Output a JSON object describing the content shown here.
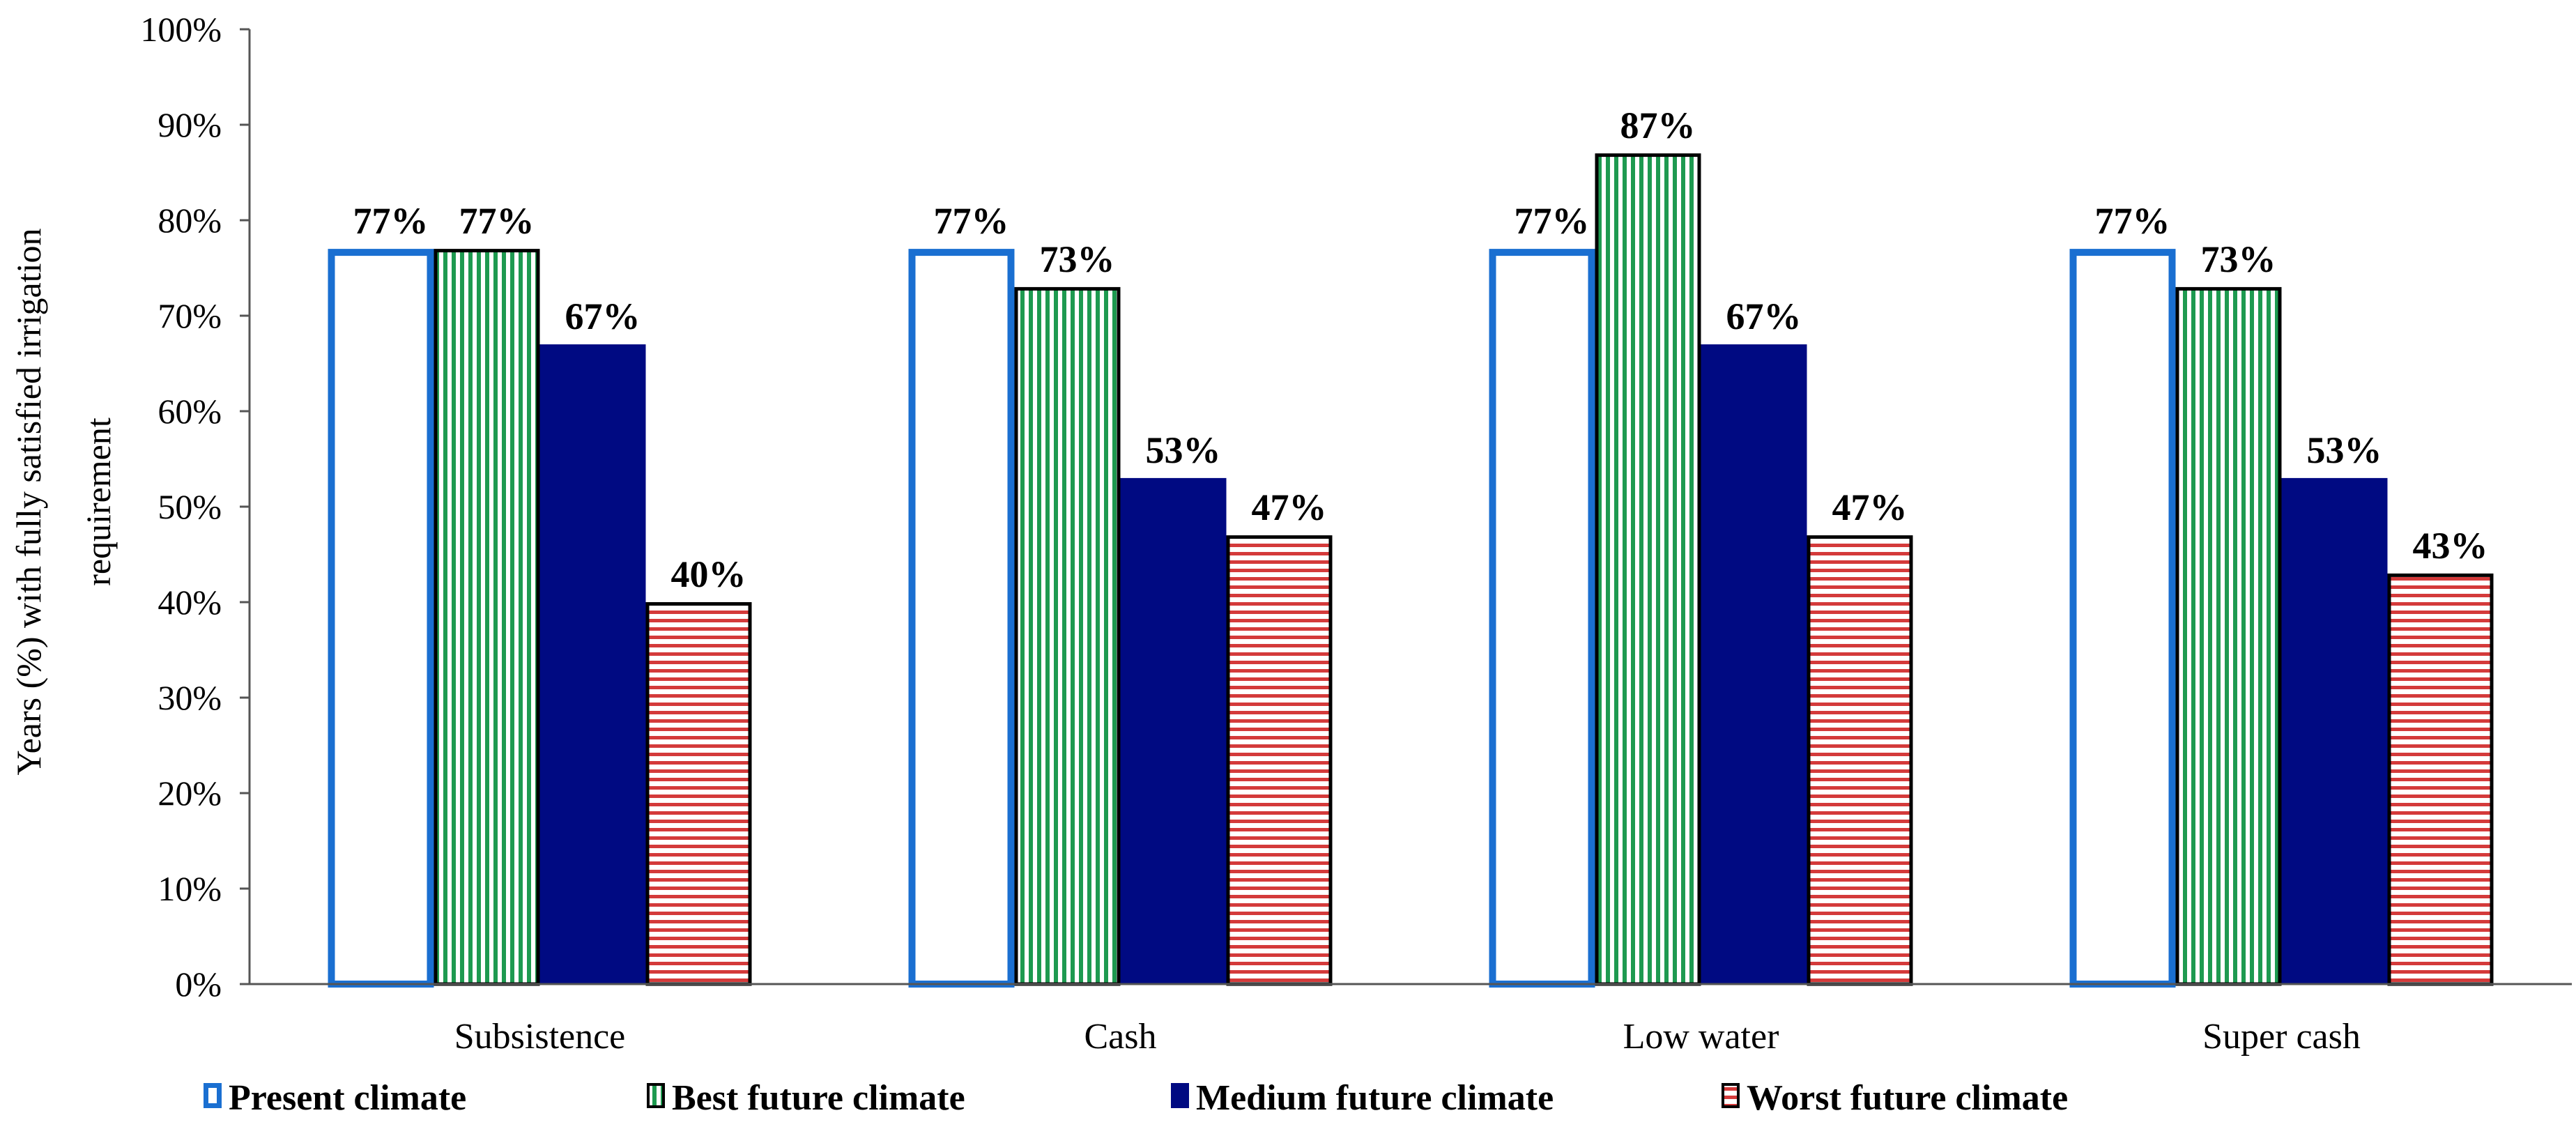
{
  "chart_data": {
    "type": "bar",
    "title": "",
    "xlabel": "",
    "ylabel": "Years (%) with fully satisfied irrigation requirement",
    "ylabel_lines": [
      "Years (%) with fully satisfied irrigation",
      "requirement"
    ],
    "ylim": [
      0,
      100
    ],
    "yticks": [
      0,
      10,
      20,
      30,
      40,
      50,
      60,
      70,
      80,
      90,
      100
    ],
    "ytick_labels": [
      "0%",
      "10%",
      "20%",
      "30%",
      "40%",
      "50%",
      "60%",
      "70%",
      "80%",
      "90%",
      "100%"
    ],
    "categories": [
      "Subsistence",
      "Cash",
      "Low water",
      "Super cash"
    ],
    "series": [
      {
        "name": "Present climate",
        "values": [
          77,
          77,
          77,
          77
        ],
        "labels": [
          "77%",
          "77%",
          "77%",
          "77%"
        ],
        "style": "outline",
        "color": "#1a6fd1"
      },
      {
        "name": "Best future climate",
        "values": [
          77,
          73,
          87,
          73
        ],
        "labels": [
          "77%",
          "73%",
          "87%",
          "73%"
        ],
        "style": "vstripe",
        "color": "#1e9a50"
      },
      {
        "name": "Medium future climate",
        "values": [
          67,
          53,
          67,
          53
        ],
        "labels": [
          "67%",
          "53%",
          "67%",
          "53%"
        ],
        "style": "solid",
        "color": "#000a82"
      },
      {
        "name": "Worst future climate",
        "values": [
          40,
          47,
          47,
          43
        ],
        "labels": [
          "40%",
          "47%",
          "47%",
          "43%"
        ],
        "style": "hstripe",
        "color": "#d43a3a"
      }
    ],
    "legend": "bottom",
    "grid": false
  }
}
